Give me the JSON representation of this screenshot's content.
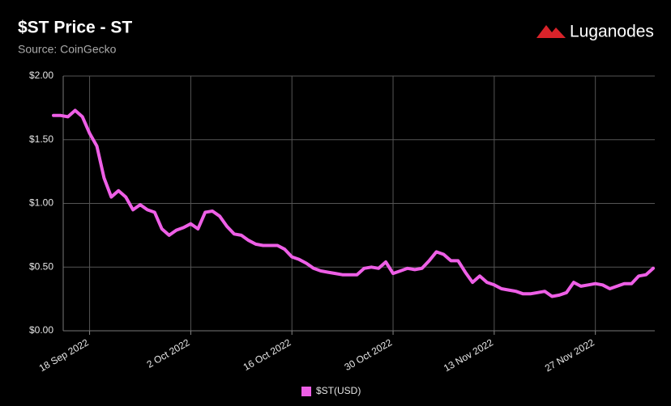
{
  "chart_data": {
    "type": "line",
    "title": "$ST Price - ST",
    "subtitle": "Source: CoinGecko",
    "brand": "Luganodes",
    "x": [
      "2022-09-13",
      "2022-09-14",
      "2022-09-15",
      "2022-09-16",
      "2022-09-17",
      "2022-09-18",
      "2022-09-19",
      "2022-09-20",
      "2022-09-21",
      "2022-09-22",
      "2022-09-23",
      "2022-09-24",
      "2022-09-25",
      "2022-09-26",
      "2022-09-27",
      "2022-09-28",
      "2022-09-29",
      "2022-09-30",
      "2022-10-01",
      "2022-10-02",
      "2022-10-03",
      "2022-10-04",
      "2022-10-05",
      "2022-10-06",
      "2022-10-07",
      "2022-10-08",
      "2022-10-09",
      "2022-10-10",
      "2022-10-11",
      "2022-10-12",
      "2022-10-13",
      "2022-10-14",
      "2022-10-15",
      "2022-10-16",
      "2022-10-17",
      "2022-10-18",
      "2022-10-19",
      "2022-10-20",
      "2022-10-21",
      "2022-10-22",
      "2022-10-23",
      "2022-10-24",
      "2022-10-25",
      "2022-10-26",
      "2022-10-27",
      "2022-10-28",
      "2022-10-29",
      "2022-10-30",
      "2022-10-31",
      "2022-11-01",
      "2022-11-02",
      "2022-11-03",
      "2022-11-04",
      "2022-11-05",
      "2022-11-06",
      "2022-11-07",
      "2022-11-08",
      "2022-11-09",
      "2022-11-10",
      "2022-11-11",
      "2022-11-12",
      "2022-11-13",
      "2022-11-14",
      "2022-11-15",
      "2022-11-16",
      "2022-11-17",
      "2022-11-18",
      "2022-11-19",
      "2022-11-20",
      "2022-11-21",
      "2022-11-22",
      "2022-11-23",
      "2022-11-24",
      "2022-11-25",
      "2022-11-26",
      "2022-11-27",
      "2022-11-28",
      "2022-11-29",
      "2022-11-30",
      "2022-12-01",
      "2022-12-02",
      "2022-12-03",
      "2022-12-04",
      "2022-12-05"
    ],
    "series": [
      {
        "name": "$ST(USD)",
        "color": "#ee5fe6",
        "values": [
          1.69,
          1.69,
          1.68,
          1.73,
          1.68,
          1.55,
          1.45,
          1.2,
          1.05,
          1.1,
          1.05,
          0.95,
          0.99,
          0.95,
          0.93,
          0.8,
          0.75,
          0.79,
          0.81,
          0.84,
          0.8,
          0.93,
          0.94,
          0.9,
          0.82,
          0.76,
          0.75,
          0.71,
          0.68,
          0.67,
          0.67,
          0.67,
          0.64,
          0.58,
          0.56,
          0.53,
          0.49,
          0.47,
          0.46,
          0.45,
          0.44,
          0.44,
          0.44,
          0.49,
          0.5,
          0.49,
          0.54,
          0.45,
          0.47,
          0.49,
          0.48,
          0.49,
          0.55,
          0.62,
          0.6,
          0.55,
          0.55,
          0.46,
          0.38,
          0.43,
          0.38,
          0.36,
          0.33,
          0.32,
          0.31,
          0.29,
          0.29,
          0.3,
          0.31,
          0.27,
          0.28,
          0.3,
          0.38,
          0.35,
          0.36,
          0.37,
          0.36,
          0.33,
          0.35,
          0.37,
          0.37,
          0.43,
          0.44,
          0.49
        ]
      }
    ],
    "xlim": [
      "2022-09-13",
      "2022-12-05"
    ],
    "xticks": [
      {
        "value": "2022-09-18",
        "label": "18 Sep 2022"
      },
      {
        "value": "2022-10-02",
        "label": "2 Oct 2022"
      },
      {
        "value": "2022-10-16",
        "label": "16 Oct 2022"
      },
      {
        "value": "2022-10-30",
        "label": "30 Oct 2022"
      },
      {
        "value": "2022-11-13",
        "label": "13 Nov 2022"
      },
      {
        "value": "2022-11-27",
        "label": "27 Nov 2022"
      }
    ],
    "ylim": [
      0,
      2
    ],
    "yticks": [
      {
        "value": 0,
        "label": "$0.00"
      },
      {
        "value": 0.5,
        "label": "$0.50"
      },
      {
        "value": 1,
        "label": "$1.00"
      },
      {
        "value": 1.5,
        "label": "$1.50"
      },
      {
        "value": 2,
        "label": "$2.00"
      }
    ],
    "grid": true,
    "legend": "bottom"
  }
}
